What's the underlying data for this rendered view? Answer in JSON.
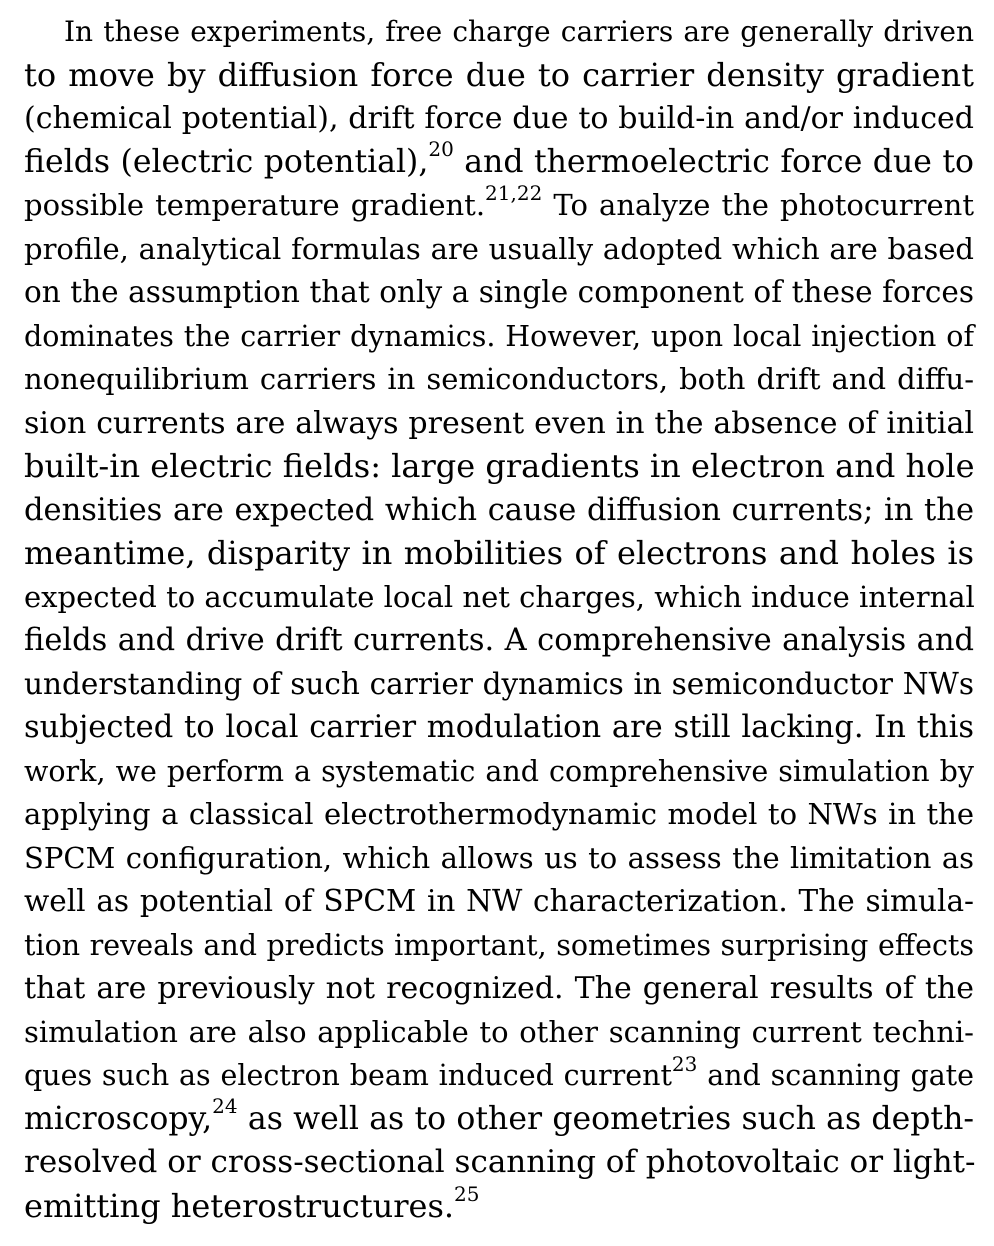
{
  "paragraph": {
    "lines": [
      {
        "segments": [
          {
            "text": "In these experiments, free charge carriers are generally driven"
          }
        ]
      },
      {
        "segments": [
          {
            "text": "to move by diffusion force due to carrier density gradient"
          }
        ]
      },
      {
        "segments": [
          {
            "text": "(chemical potential), drift force due to build-in and/or induced"
          }
        ]
      },
      {
        "segments": [
          {
            "text": "fields (electric potential),"
          },
          {
            "sup": "20"
          },
          {
            "text": " and thermoelectric force due to"
          }
        ]
      },
      {
        "segments": [
          {
            "text": "possible temperature gradient."
          },
          {
            "sup": "21,22"
          },
          {
            "text": " To analyze the photocurrent"
          }
        ]
      },
      {
        "segments": [
          {
            "text": "profile, analytical formulas are usually adopted which are based"
          }
        ]
      },
      {
        "segments": [
          {
            "text": "on the assumption that only a single component of these forces"
          }
        ]
      },
      {
        "segments": [
          {
            "text": "dominates the carrier dynamics. However, upon local injection of"
          }
        ]
      },
      {
        "segments": [
          {
            "text": "nonequilibrium carriers in semiconductors, both drift and diffu-"
          }
        ]
      },
      {
        "segments": [
          {
            "text": "sion currents are always present even in the absence of initial"
          }
        ]
      },
      {
        "segments": [
          {
            "text": "built-in electric fields: large gradients in electron and hole"
          }
        ]
      },
      {
        "segments": [
          {
            "text": "densities are expected which cause diffusion currents; in the"
          }
        ]
      },
      {
        "segments": [
          {
            "text": "meantime, disparity in mobilities of electrons and holes is"
          }
        ]
      },
      {
        "segments": [
          {
            "text": "expected to accumulate local net charges, which induce internal"
          }
        ]
      },
      {
        "segments": [
          {
            "text": "fields and drive drift currents. A comprehensive analysis and"
          }
        ]
      },
      {
        "segments": [
          {
            "text": "understanding of such carrier dynamics in semiconductor NWs"
          }
        ]
      },
      {
        "segments": [
          {
            "text": "subjected to local carrier modulation are still lacking. In this"
          }
        ]
      },
      {
        "segments": [
          {
            "text": "work, we perform a systematic and comprehensive simulation by"
          }
        ]
      },
      {
        "segments": [
          {
            "text": "applying a classical electrothermodynamic model to NWs in the"
          }
        ]
      },
      {
        "segments": [
          {
            "text": "SPCM configuration, which allows us to assess the limitation as"
          }
        ]
      },
      {
        "segments": [
          {
            "text": "well as potential of SPCM in NW characterization. The simula-"
          }
        ]
      },
      {
        "segments": [
          {
            "text": "tion reveals and predicts important, sometimes surprising effects"
          }
        ]
      },
      {
        "segments": [
          {
            "text": "that are previously not recognized. The general results of the"
          }
        ]
      },
      {
        "segments": [
          {
            "text": "simulation are also applicable to other scanning current techni-"
          }
        ]
      },
      {
        "segments": [
          {
            "text": "ques such as electron beam induced current"
          },
          {
            "sup": "23"
          },
          {
            "text": " and scanning gate"
          }
        ]
      },
      {
        "segments": [
          {
            "text": "microscopy,"
          },
          {
            "sup": "24"
          },
          {
            "text": " as well as to other geometries such as depth-"
          }
        ]
      },
      {
        "segments": [
          {
            "text": "resolved or cross-sectional scanning of photovoltaic or light-"
          }
        ]
      },
      {
        "segments": [
          {
            "text": "emitting heterostructures."
          },
          {
            "sup": "25"
          }
        ]
      }
    ]
  }
}
